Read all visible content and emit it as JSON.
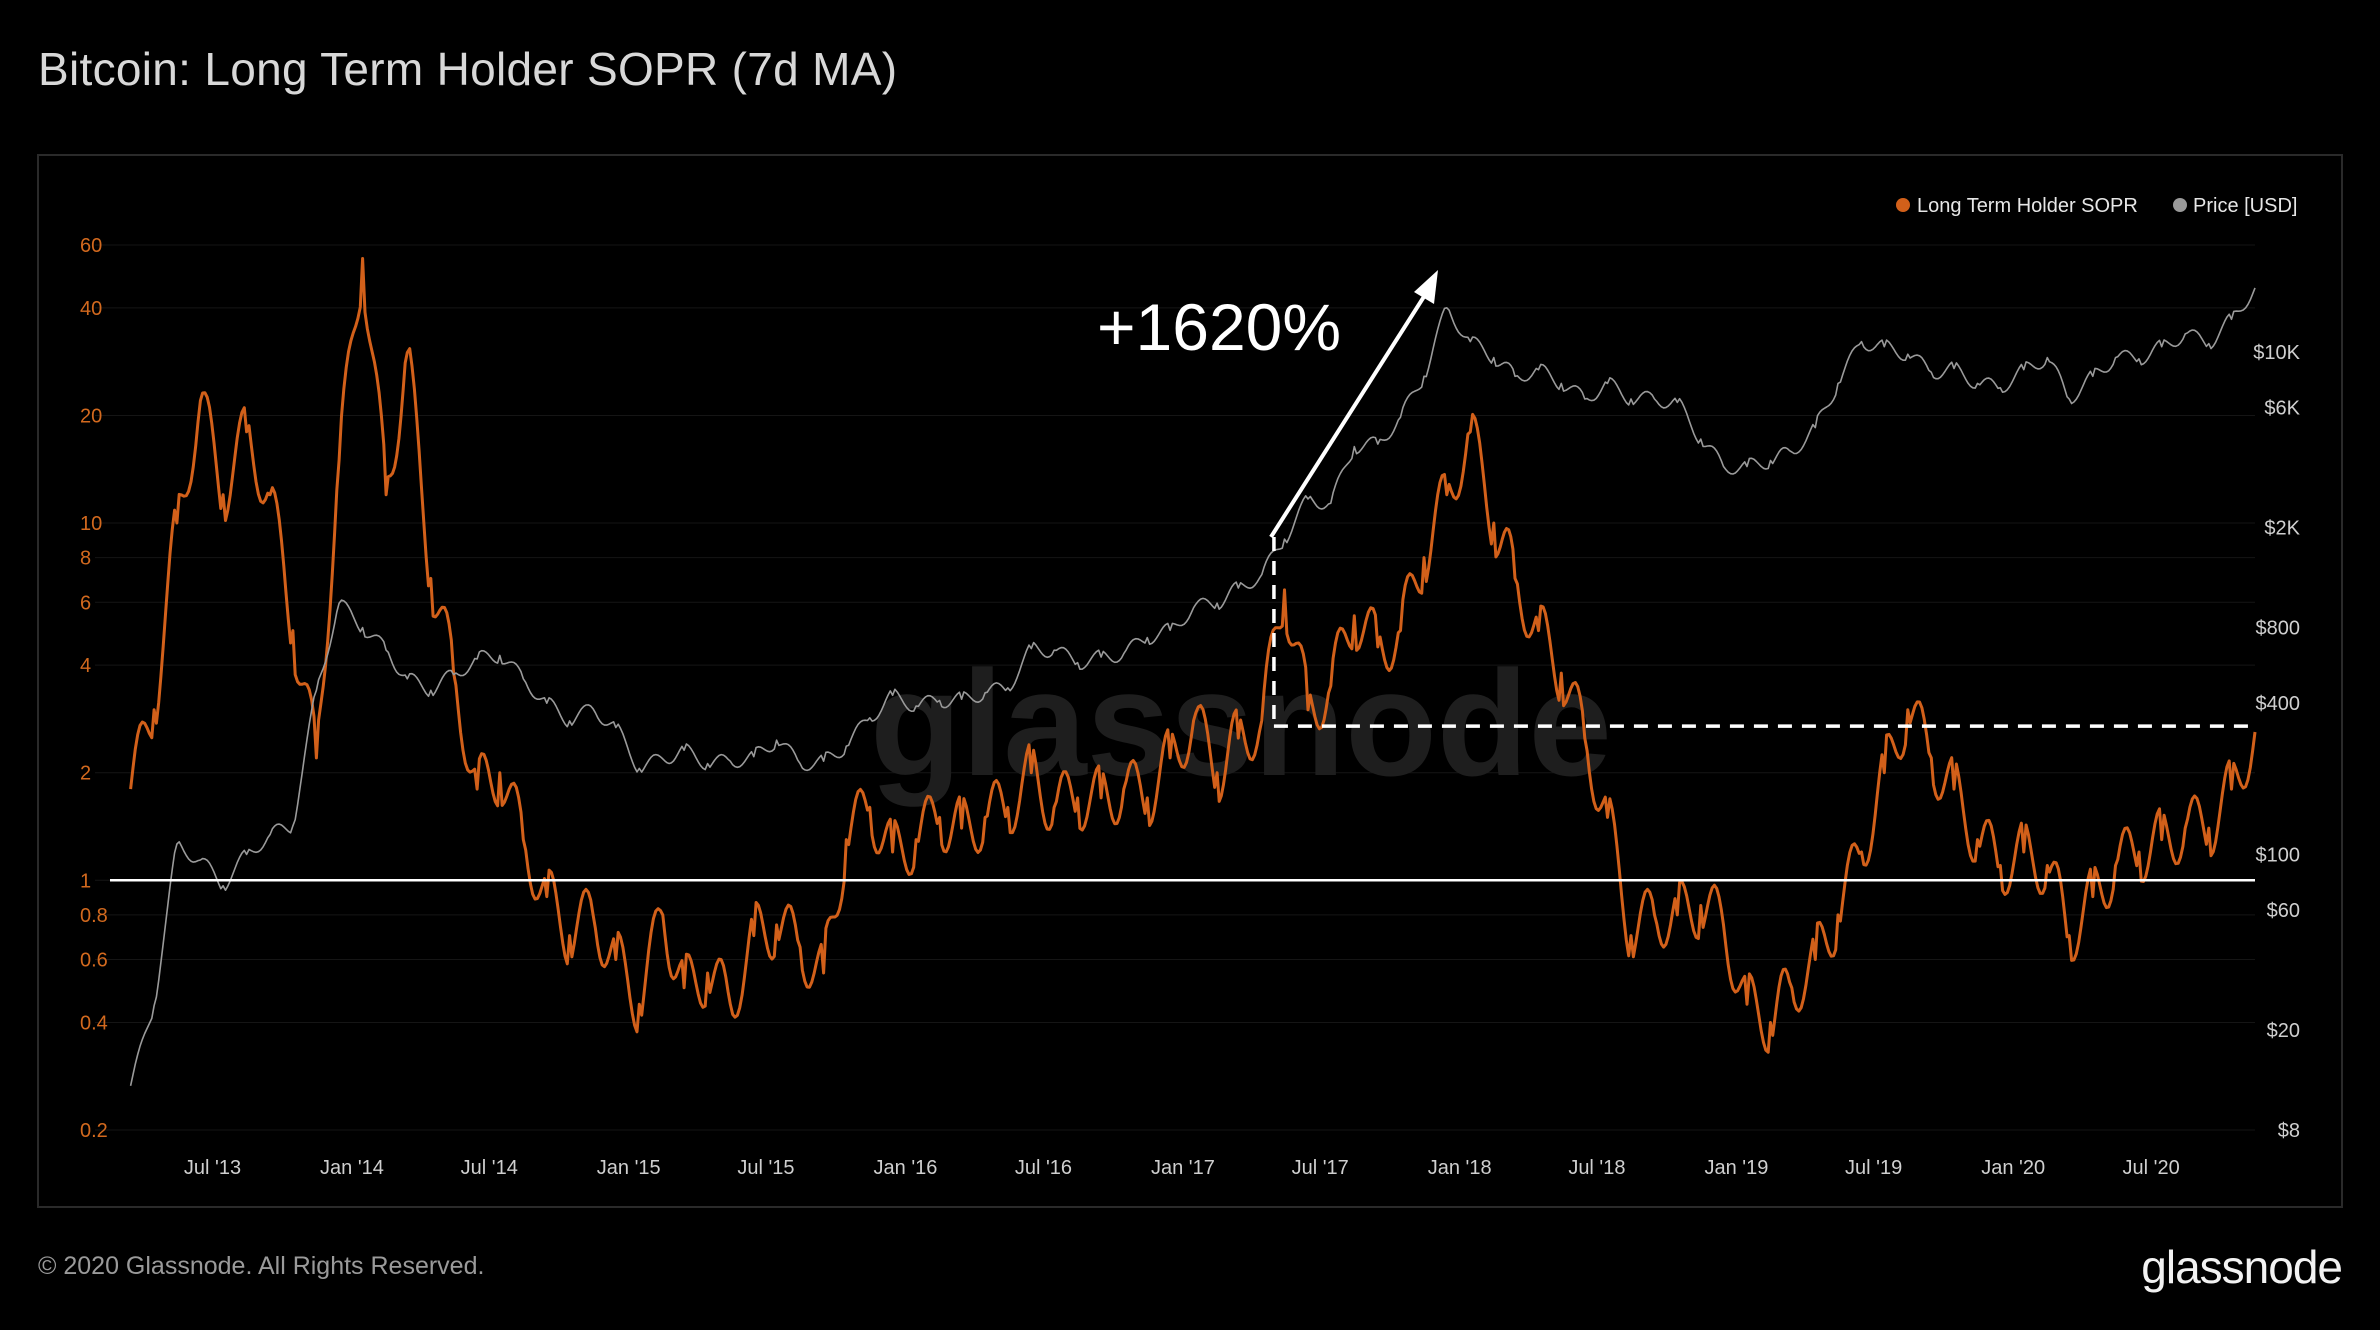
{
  "header": {
    "title": "Bitcoin: Long Term Holder SOPR (7d MA)"
  },
  "footer": {
    "copyright": "© 2020 Glassnode. All Rights Reserved.",
    "brand": "glassnode"
  },
  "watermark": "glassnode",
  "colors": {
    "sopr": "#d2601a",
    "price": "#9a9a9a",
    "background": "#000000",
    "frame": "#2a2a2a"
  },
  "chart_data": {
    "type": "line",
    "title": "Bitcoin: Long Term Holder SOPR (7d MA)",
    "annotation": "+1620%",
    "legend": {
      "placement": "top-right",
      "items": [
        "Long Term Holder SOPR",
        "Price [USD]"
      ]
    },
    "x_ticks": [
      "Jul '13",
      "Jan '14",
      "Jul '14",
      "Jan '15",
      "Jul '15",
      "Jan '16",
      "Jul '16",
      "Jan '17",
      "Jul '17",
      "Jan '18",
      "Jul '18",
      "Jan '19",
      "Jul '19",
      "Jan '20",
      "Jul '20"
    ],
    "y_left": {
      "scale": "log",
      "ticks": [
        "60",
        "40",
        "20",
        "10",
        "8",
        "6",
        "4",
        "2",
        "1",
        "0.8",
        "0.6",
        "0.4",
        "0.2"
      ],
      "values": [
        60,
        40,
        20,
        10,
        8,
        6,
        4,
        2,
        1,
        0.8,
        0.6,
        0.4,
        0.2
      ]
    },
    "y_right": {
      "scale": "log",
      "ticks": [
        "$10K",
        "$6K",
        "$2K",
        "$800",
        "$400",
        "$100",
        "$60",
        "$20",
        "$8"
      ],
      "values": [
        10000,
        6000,
        2000,
        800,
        400,
        100,
        60,
        20,
        8
      ]
    },
    "reference_line": 1,
    "annotation_levels": {
      "start": 2.7,
      "end": 2.7
    },
    "series": [
      {
        "name": "Long Term Holder SOPR",
        "axis": "left",
        "x": [
          "2013-03",
          "2013-04",
          "2013-05",
          "2013-06",
          "2013-07",
          "2013-08",
          "2013-09",
          "2013-10",
          "2013-11",
          "2013-12",
          "2014-01",
          "2014-02",
          "2014-03",
          "2014-04",
          "2014-05",
          "2014-06",
          "2014-07",
          "2014-08",
          "2014-09",
          "2014-10",
          "2014-11",
          "2014-12",
          "2015-01",
          "2015-02",
          "2015-03",
          "2015-04",
          "2015-05",
          "2015-06",
          "2015-07",
          "2015-08",
          "2015-09",
          "2015-10",
          "2015-11",
          "2015-12",
          "2016-01",
          "2016-02",
          "2016-03",
          "2016-04",
          "2016-05",
          "2016-06",
          "2016-07",
          "2016-08",
          "2016-09",
          "2016-10",
          "2016-11",
          "2016-12",
          "2017-01",
          "2017-02",
          "2017-03",
          "2017-04",
          "2017-05",
          "2017-06",
          "2017-07",
          "2017-08",
          "2017-09",
          "2017-10",
          "2017-11",
          "2017-12",
          "2018-01",
          "2018-02",
          "2018-03",
          "2018-04",
          "2018-05",
          "2018-06",
          "2018-07",
          "2018-08",
          "2018-09",
          "2018-10",
          "2018-11",
          "2018-12",
          "2019-01",
          "2019-02",
          "2019-03",
          "2019-04",
          "2019-05",
          "2019-06",
          "2019-07",
          "2019-08",
          "2019-09",
          "2019-10",
          "2019-11",
          "2019-12",
          "2020-01",
          "2020-02",
          "2020-03",
          "2020-04",
          "2020-05",
          "2020-06",
          "2020-07",
          "2020-08",
          "2020-09",
          "2020-10",
          "2020-11"
        ],
        "values": [
          1.8,
          3.0,
          10.0,
          22.0,
          12.0,
          18.0,
          12.0,
          5.0,
          2.2,
          15.0,
          55.0,
          12.0,
          30.0,
          7.0,
          3.8,
          1.8,
          2.0,
          1.3,
          0.9,
          0.7,
          0.8,
          0.6,
          0.45,
          0.8,
          0.5,
          0.55,
          0.45,
          0.7,
          0.75,
          0.65,
          0.55,
          1.3,
          1.6,
          1.2,
          1.3,
          1.5,
          1.4,
          1.5,
          1.6,
          2.0,
          1.6,
          1.7,
          1.7,
          1.8,
          1.7,
          2.2,
          2.8,
          2.0,
          2.5,
          2.8,
          6.5,
          3.0,
          3.5,
          5.5,
          4.5,
          5.0,
          8.0,
          12.0,
          18.0,
          10.0,
          7.0,
          5.0,
          3.8,
          2.5,
          1.5,
          0.7,
          0.8,
          0.8,
          0.85,
          0.75,
          0.45,
          0.4,
          0.5,
          0.6,
          0.8,
          1.2,
          2.0,
          3.0,
          2.2,
          1.8,
          1.3,
          1.1,
          1.2,
          1.1,
          0.7,
          0.9,
          1.1,
          1.2,
          1.3,
          1.4,
          1.4,
          1.8,
          2.6
        ]
      },
      {
        "name": "Price [USD]",
        "axis": "right",
        "x": [
          "2013-03",
          "2013-04",
          "2013-05",
          "2013-06",
          "2013-07",
          "2013-08",
          "2013-09",
          "2013-10",
          "2013-11",
          "2013-12",
          "2014-01",
          "2014-02",
          "2014-03",
          "2014-04",
          "2014-05",
          "2014-06",
          "2014-07",
          "2014-08",
          "2014-09",
          "2014-10",
          "2014-11",
          "2014-12",
          "2015-01",
          "2015-02",
          "2015-03",
          "2015-04",
          "2015-05",
          "2015-06",
          "2015-07",
          "2015-08",
          "2015-09",
          "2015-10",
          "2015-11",
          "2015-12",
          "2016-01",
          "2016-02",
          "2016-03",
          "2016-04",
          "2016-05",
          "2016-06",
          "2016-07",
          "2016-08",
          "2016-09",
          "2016-10",
          "2016-11",
          "2016-12",
          "2017-01",
          "2017-02",
          "2017-03",
          "2017-04",
          "2017-05",
          "2017-06",
          "2017-07",
          "2017-08",
          "2017-09",
          "2017-10",
          "2017-11",
          "2017-12",
          "2018-01",
          "2018-02",
          "2018-03",
          "2018-04",
          "2018-05",
          "2018-06",
          "2018-07",
          "2018-08",
          "2018-09",
          "2018-10",
          "2018-11",
          "2018-12",
          "2019-01",
          "2019-02",
          "2019-03",
          "2019-04",
          "2019-05",
          "2019-06",
          "2019-07",
          "2019-08",
          "2019-09",
          "2019-10",
          "2019-11",
          "2019-12",
          "2020-01",
          "2020-02",
          "2020-03",
          "2020-04",
          "2020-05",
          "2020-06",
          "2020-07",
          "2020-08",
          "2020-09",
          "2020-10",
          "2020-11"
        ],
        "values": [
          12,
          25,
          110,
          95,
          75,
          100,
          120,
          130,
          450,
          1000,
          800,
          650,
          500,
          450,
          520,
          600,
          620,
          500,
          400,
          340,
          380,
          320,
          220,
          240,
          260,
          230,
          235,
          245,
          285,
          230,
          235,
          270,
          350,
          430,
          390,
          410,
          415,
          440,
          460,
          660,
          650,
          580,
          610,
          630,
          730,
          780,
          960,
          1000,
          1150,
          1300,
          1800,
          2600,
          2500,
          4200,
          4300,
          5500,
          8000,
          15000,
          11000,
          9500,
          8000,
          8500,
          7500,
          6500,
          7500,
          6500,
          6500,
          6300,
          4500,
          3500,
          3500,
          3700,
          4000,
          5000,
          7500,
          11000,
          10500,
          9800,
          8300,
          8600,
          7500,
          7200,
          8500,
          9500,
          6500,
          8000,
          9500,
          9400,
          10500,
          11800,
          10800,
          13500,
          18000
        ]
      }
    ]
  }
}
